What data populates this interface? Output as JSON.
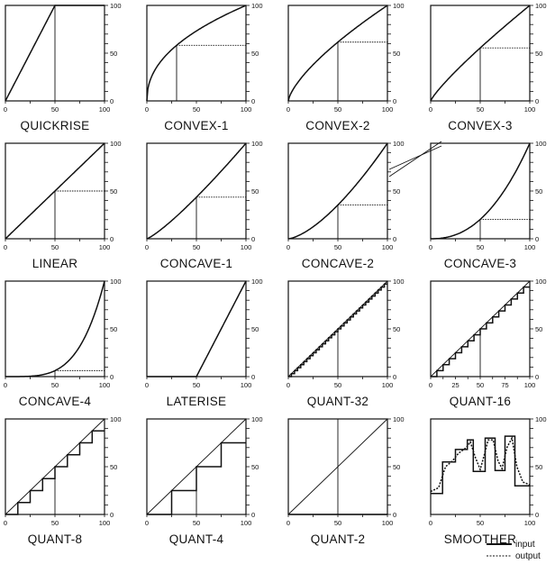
{
  "panels": [
    {
      "id": "quickrise",
      "label": "QUICKRISE",
      "kind": "power",
      "p": 1,
      "scale": 2,
      "marker": 50
    },
    {
      "id": "convex-1",
      "label": "CONVEX-1",
      "kind": "power",
      "p": 0.45,
      "marker": 30
    },
    {
      "id": "convex-2",
      "label": "CONVEX-2",
      "kind": "power",
      "p": 0.7,
      "marker": 50
    },
    {
      "id": "convex-3",
      "label": "CONVEX-3",
      "kind": "power",
      "p": 0.85,
      "marker": 50
    },
    {
      "id": "linear",
      "label": "LINEAR",
      "kind": "power",
      "p": 1,
      "marker": 50
    },
    {
      "id": "concave-1",
      "label": "CONCAVE-1",
      "kind": "power",
      "p": 1.2,
      "marker": 50
    },
    {
      "id": "concave-2",
      "label": "CONCAVE-2",
      "kind": "power",
      "p": 1.5,
      "marker": 50
    },
    {
      "id": "concave-3",
      "label": "CONCAVE-3",
      "kind": "power",
      "p": 2.3,
      "marker": 50
    },
    {
      "id": "concave-4",
      "label": "CONCAVE-4",
      "kind": "power",
      "p": 4,
      "marker": 50
    },
    {
      "id": "laterise",
      "label": "LATERISE",
      "kind": "late",
      "start": 50,
      "marker": 50
    },
    {
      "id": "quant-32",
      "label": "QUANT-32",
      "kind": "quant",
      "steps": 32,
      "marker": 50
    },
    {
      "id": "quant-16",
      "label": "QUANT-16",
      "kind": "quant",
      "steps": 16,
      "marker": 50,
      "xticks": [
        "0",
        "25",
        "50",
        "75",
        "100"
      ]
    },
    {
      "id": "quant-8",
      "label": "QUANT-8",
      "kind": "quant",
      "steps": 8,
      "marker": 50
    },
    {
      "id": "quant-4",
      "label": "QUANT-4",
      "kind": "quant",
      "steps": 4,
      "marker": 50
    },
    {
      "id": "quant-2",
      "label": "QUANT-2",
      "kind": "quant",
      "steps": 2,
      "marker": 50
    },
    {
      "id": "smoother",
      "label": "SMOOTHER",
      "kind": "smoother"
    }
  ],
  "ticks": {
    "x": [
      "0",
      "50",
      "100"
    ],
    "y": [
      "0",
      "50",
      "100"
    ]
  },
  "legend": {
    "input": "input",
    "output": "output"
  },
  "smoother_data": {
    "input": [
      [
        0,
        22
      ],
      [
        12,
        22
      ],
      [
        12,
        55
      ],
      [
        25,
        55
      ],
      [
        25,
        68
      ],
      [
        37,
        68
      ],
      [
        37,
        78
      ],
      [
        43,
        78
      ],
      [
        43,
        45
      ],
      [
        55,
        45
      ],
      [
        55,
        80
      ],
      [
        65,
        80
      ],
      [
        65,
        46
      ],
      [
        75,
        46
      ],
      [
        75,
        82
      ],
      [
        85,
        82
      ],
      [
        85,
        30
      ],
      [
        100,
        30
      ]
    ],
    "output": [
      [
        0,
        24
      ],
      [
        8,
        28
      ],
      [
        15,
        50
      ],
      [
        22,
        56
      ],
      [
        28,
        64
      ],
      [
        36,
        70
      ],
      [
        40,
        76
      ],
      [
        45,
        60
      ],
      [
        50,
        47
      ],
      [
        54,
        62
      ],
      [
        58,
        78
      ],
      [
        63,
        78
      ],
      [
        68,
        56
      ],
      [
        72,
        48
      ],
      [
        77,
        70
      ],
      [
        82,
        80
      ],
      [
        87,
        50
      ],
      [
        93,
        34
      ],
      [
        100,
        31
      ]
    ]
  }
}
